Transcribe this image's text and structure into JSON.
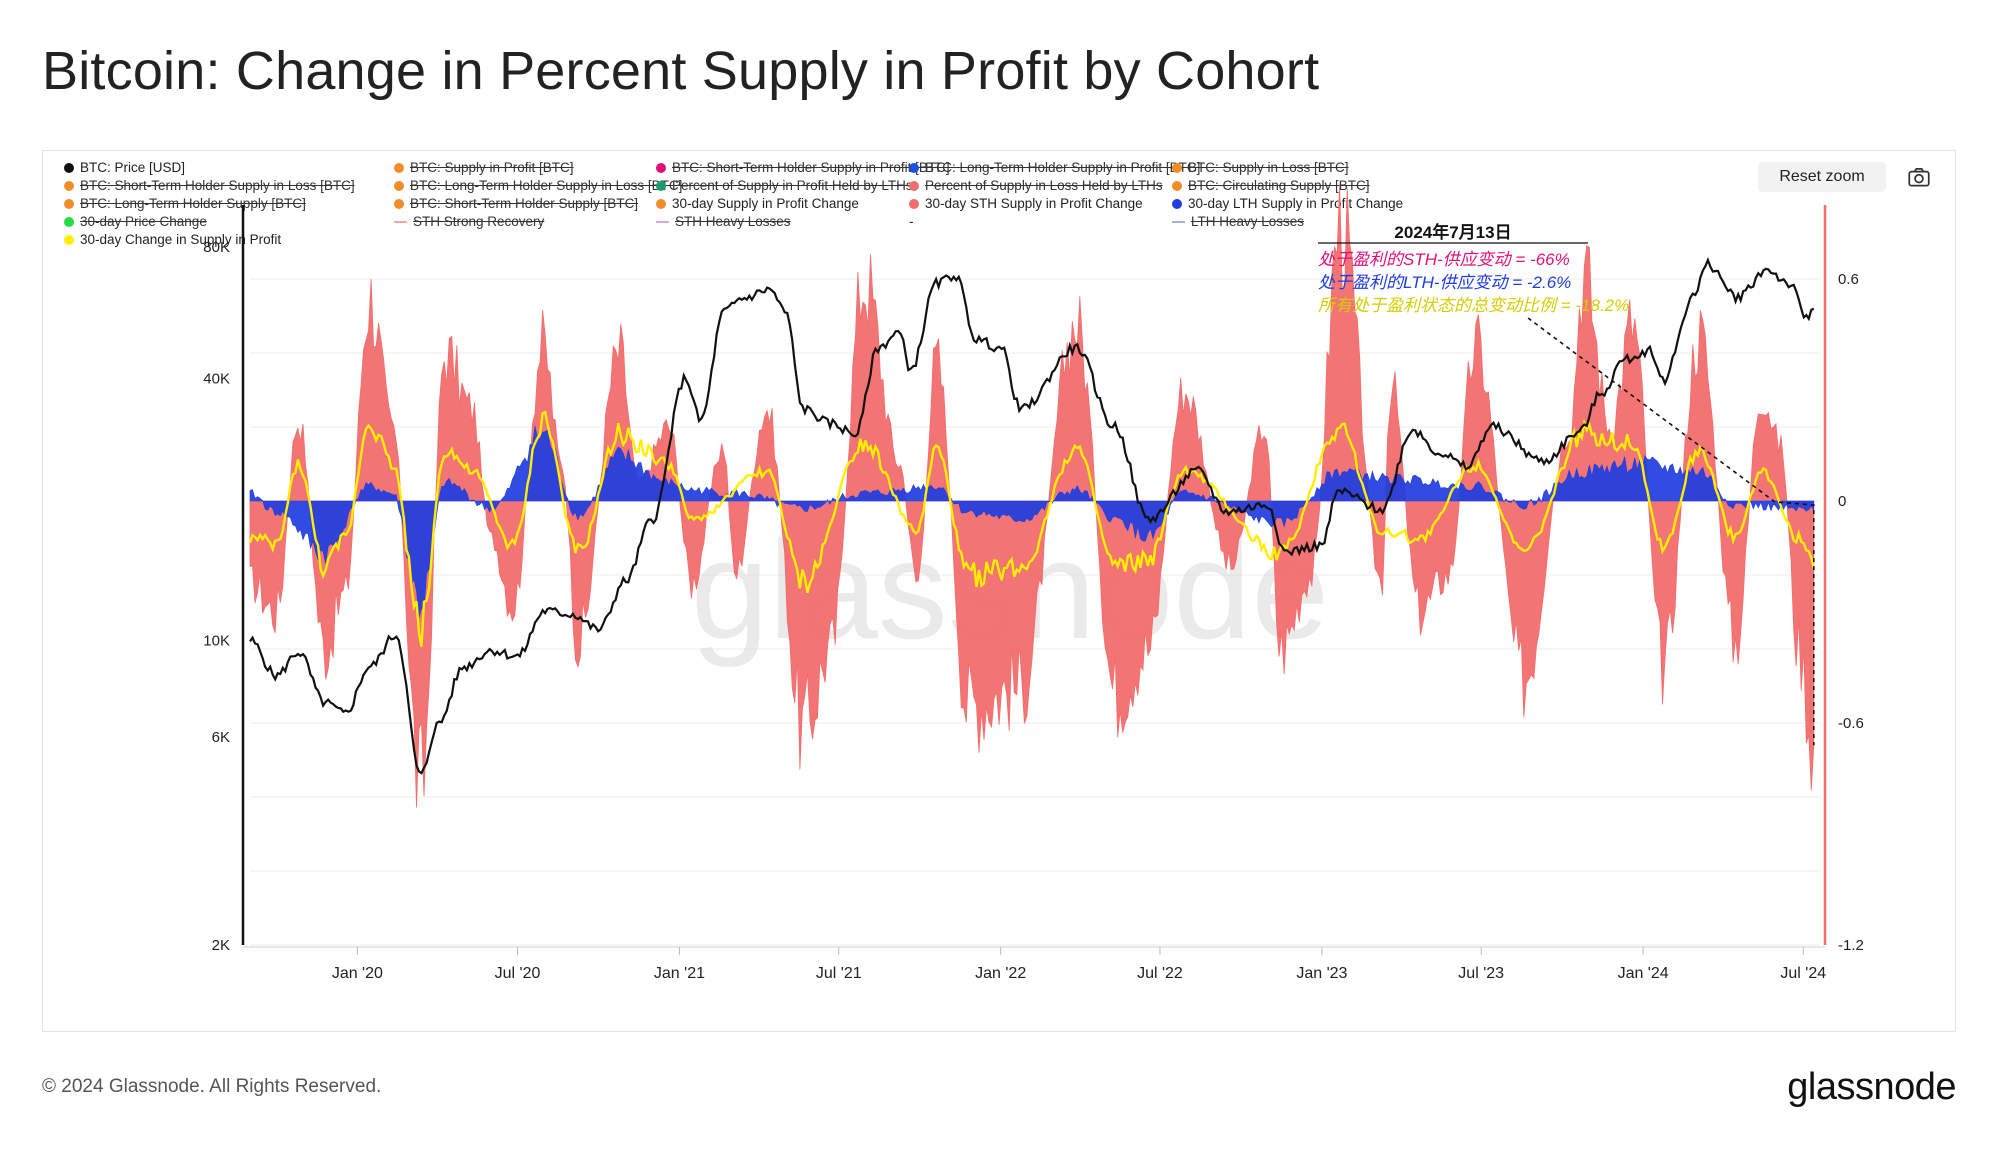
{
  "page": {
    "title": "Bitcoin: Change in Percent Supply in Profit by Cohort",
    "footer": "© 2024 Glassnode. All Rights Reserved.",
    "brand": "glassnode",
    "watermark": "glassnode",
    "reset_zoom_label": "Reset zoom",
    "camera_icon": "camera-icon"
  },
  "legend": [
    {
      "label": "BTC: Price [USD]",
      "color": "#111111",
      "off": false,
      "shape": "dot"
    },
    {
      "label": "BTC: Supply in Profit [BTC]",
      "color": "#f28c28",
      "off": true,
      "shape": "dot"
    },
    {
      "label": "BTC: Short-Term Holder Supply in Profit [BTC]",
      "color": "#e0107a",
      "off": true,
      "shape": "dot"
    },
    {
      "label": "BTC: Long-Term Holder Supply in Profit [BTC]",
      "color": "#1f4fe0",
      "off": true,
      "shape": "dot"
    },
    {
      "label": "BTC: Supply in Loss [BTC]",
      "color": "#f28c28",
      "off": true,
      "shape": "dot"
    },
    {
      "label": "BTC: Short-Term Holder Supply in Loss [BTC]",
      "color": "#f28c28",
      "off": true,
      "shape": "dot"
    },
    {
      "label": "BTC: Long-Term Holder Supply in Loss [BTC]",
      "color": "#f28c28",
      "off": true,
      "shape": "dot"
    },
    {
      "label": "Percent of Supply in Profit Held by LTHs",
      "color": "#1a9e6e",
      "off": true,
      "shape": "dot"
    },
    {
      "label": "Percent of Supply in Loss Held by LTHs",
      "color": "#f26d6d",
      "off": true,
      "shape": "dot"
    },
    {
      "label": "BTC: Circulating Supply [BTC]",
      "color": "#f28c28",
      "off": true,
      "shape": "dot"
    },
    {
      "label": "BTC: Long-Term Holder Supply [BTC]",
      "color": "#f28c28",
      "off": true,
      "shape": "dot"
    },
    {
      "label": "BTC: Short-Term Holder Supply [BTC]",
      "color": "#f28c28",
      "off": true,
      "shape": "dot"
    },
    {
      "label": "30-day Supply in Profit Change",
      "color": "#f28c28",
      "off": false,
      "shape": "dot"
    },
    {
      "label": "30-day STH Supply in Profit Change",
      "color": "#f26d6d",
      "off": false,
      "shape": "dot"
    },
    {
      "label": "30-day LTH Supply in Profit Change",
      "color": "#1f3de0",
      "off": false,
      "shape": "dot"
    },
    {
      "label": "30-day Price Change",
      "color": "#22dd44",
      "off": true,
      "shape": "dot"
    },
    {
      "label": "STH Strong Recovery",
      "color": "#f4a6a6",
      "off": true,
      "shape": "dash"
    },
    {
      "label": "STH Heavy Losses",
      "color": "#d9a6e6",
      "off": true,
      "shape": "dash"
    },
    {
      "label": "-",
      "color": "#ffffff",
      "off": false,
      "shape": "none"
    },
    {
      "label": "LTH Heavy Losses",
      "color": "#9fb3e6",
      "off": true,
      "shape": "dash"
    },
    {
      "label": "30-day Change in Supply in Profit",
      "color": "#ffee00",
      "off": false,
      "shape": "dot"
    }
  ],
  "annotation": {
    "date": "2024年7月13日",
    "line1": "处于盈利的STH-供应变动 = -66%",
    "line2": "处于盈利的LTH-供应变动 = -2.6%",
    "line3": "所有处于盈利状态的总变动比例 = -18.2%",
    "color1": "#e0107a",
    "color2": "#1f3de0",
    "color3": "#d6cc00"
  },
  "chart_data": {
    "type": "area",
    "x_axis": {
      "type": "date",
      "range": [
        "2019-09-01",
        "2024-07-20"
      ],
      "ticks": [
        "2020-01-01",
        "2020-07-01",
        "2021-01-01",
        "2021-07-01",
        "2022-01-01",
        "2022-07-01",
        "2023-01-01",
        "2023-07-01",
        "2024-01-01",
        "2024-07-01"
      ],
      "tick_labels": [
        "Jan '20",
        "Jul '20",
        "Jan '21",
        "Jul '21",
        "Jan '22",
        "Jul '22",
        "Jan '23",
        "Jul '23",
        "Jan '24",
        "Jul '24"
      ]
    },
    "y_left": {
      "scale": "log",
      "range": [
        2000,
        100000
      ],
      "ticks": [
        2000,
        6000,
        10000,
        40000,
        80000
      ],
      "tick_labels": [
        "2K",
        "6K",
        "10K",
        "40K",
        "80K"
      ]
    },
    "y_right": {
      "scale": "linear",
      "range": [
        -1.2,
        0.8
      ],
      "ticks": [
        -1.2,
        -0.6,
        0,
        0.6
      ],
      "tick_labels": [
        "-1.2",
        "-0.6",
        "0",
        "0.6"
      ]
    },
    "series": [
      {
        "name": "BTC: Price [USD]",
        "axis": "left",
        "style": "line",
        "color": "#111111",
        "points": [
          [
            "2019-09-01",
            10000
          ],
          [
            "2019-10-01",
            8300
          ],
          [
            "2019-10-26",
            9400
          ],
          [
            "2019-11-25",
            7200
          ],
          [
            "2019-12-18",
            6800
          ],
          [
            "2020-01-15",
            8700
          ],
          [
            "2020-02-14",
            10300
          ],
          [
            "2020-03-13",
            4900
          ],
          [
            "2020-04-01",
            6400
          ],
          [
            "2020-05-01",
            8700
          ],
          [
            "2020-06-01",
            9500
          ],
          [
            "2020-07-01",
            9200
          ],
          [
            "2020-08-01",
            11700
          ],
          [
            "2020-09-01",
            11500
          ],
          [
            "2020-10-01",
            10600
          ],
          [
            "2020-11-01",
            13700
          ],
          [
            "2020-12-01",
            19000
          ],
          [
            "2021-01-08",
            40000
          ],
          [
            "2021-01-25",
            32000
          ],
          [
            "2021-02-21",
            57000
          ],
          [
            "2021-03-13",
            61000
          ],
          [
            "2021-04-14",
            64000
          ],
          [
            "2021-05-01",
            57000
          ],
          [
            "2021-05-22",
            34000
          ],
          [
            "2021-06-22",
            31500
          ],
          [
            "2021-07-20",
            29800
          ],
          [
            "2021-08-15",
            47000
          ],
          [
            "2021-09-07",
            51000
          ],
          [
            "2021-09-21",
            42000
          ],
          [
            "2021-10-20",
            66000
          ],
          [
            "2021-11-10",
            69000
          ],
          [
            "2021-12-05",
            49000
          ],
          [
            "2022-01-01",
            47000
          ],
          [
            "2022-01-24",
            34000
          ],
          [
            "2022-03-28",
            47000
          ],
          [
            "2022-05-10",
            31000
          ],
          [
            "2022-06-18",
            19000
          ],
          [
            "2022-08-13",
            24500
          ],
          [
            "2022-09-15",
            19800
          ],
          [
            "2022-11-01",
            20500
          ],
          [
            "2022-11-20",
            16000
          ],
          [
            "2022-12-31",
            16500
          ],
          [
            "2023-01-20",
            22000
          ],
          [
            "2023-03-10",
            20000
          ],
          [
            "2023-04-14",
            30500
          ],
          [
            "2023-05-15",
            27000
          ],
          [
            "2023-06-15",
            25000
          ],
          [
            "2023-07-13",
            31000
          ],
          [
            "2023-09-10",
            25800
          ],
          [
            "2023-10-20",
            30000
          ],
          [
            "2023-11-15",
            37000
          ],
          [
            "2023-12-10",
            44000
          ],
          [
            "2024-01-10",
            46500
          ],
          [
            "2024-01-23",
            39500
          ],
          [
            "2024-02-28",
            62000
          ],
          [
            "2024-03-14",
            73000
          ],
          [
            "2024-04-17",
            61500
          ],
          [
            "2024-05-21",
            71000
          ],
          [
            "2024-06-15",
            66000
          ],
          [
            "2024-07-05",
            55000
          ],
          [
            "2024-07-13",
            58000
          ]
        ]
      },
      {
        "name": "30-day STH Supply in Profit Change",
        "axis": "right",
        "style": "area",
        "color": "#f26d6d",
        "points": [
          [
            "2019-09-01",
            -0.22
          ],
          [
            "2019-10-01",
            -0.3
          ],
          [
            "2019-10-26",
            0.22
          ],
          [
            "2019-11-25",
            -0.4
          ],
          [
            "2019-12-18",
            -0.25
          ],
          [
            "2020-01-15",
            0.55
          ],
          [
            "2020-02-10",
            0.2
          ],
          [
            "2020-03-13",
            -0.78
          ],
          [
            "2020-04-10",
            0.4
          ],
          [
            "2020-05-10",
            0.25
          ],
          [
            "2020-06-01",
            -0.1
          ],
          [
            "2020-06-26",
            -0.28
          ],
          [
            "2020-07-30",
            0.42
          ],
          [
            "2020-08-20",
            0.1
          ],
          [
            "2020-09-08",
            -0.38
          ],
          [
            "2020-10-25",
            0.4
          ],
          [
            "2020-11-15",
            0.05
          ],
          [
            "2020-12-20",
            0.2
          ],
          [
            "2021-01-15",
            -0.22
          ],
          [
            "2021-02-20",
            0.15
          ],
          [
            "2021-03-05",
            -0.2
          ],
          [
            "2021-04-10",
            0.25
          ],
          [
            "2021-05-22",
            -0.62
          ],
          [
            "2021-06-22",
            -0.4
          ],
          [
            "2021-07-30",
            0.6
          ],
          [
            "2021-09-08",
            0.1
          ],
          [
            "2021-09-28",
            -0.22
          ],
          [
            "2021-10-20",
            0.38
          ],
          [
            "2021-11-25",
            -0.55
          ],
          [
            "2022-01-24",
            -0.5
          ],
          [
            "2022-03-28",
            0.48
          ],
          [
            "2022-05-12",
            -0.52
          ],
          [
            "2022-06-18",
            -0.4
          ],
          [
            "2022-07-28",
            0.3
          ],
          [
            "2022-09-20",
            -0.18
          ],
          [
            "2022-10-28",
            0.2
          ],
          [
            "2022-11-15",
            -0.4
          ],
          [
            "2022-12-20",
            -0.2
          ],
          [
            "2023-01-22",
            0.75
          ],
          [
            "2023-03-10",
            -0.22
          ],
          [
            "2023-03-20",
            0.32
          ],
          [
            "2023-04-22",
            -0.3
          ],
          [
            "2023-05-25",
            -0.2
          ],
          [
            "2023-06-25",
            0.42
          ],
          [
            "2023-08-18",
            -0.48
          ],
          [
            "2023-10-10",
            0.2
          ],
          [
            "2023-10-25",
            0.62
          ],
          [
            "2023-11-25",
            0.2
          ],
          [
            "2023-12-20",
            0.48
          ],
          [
            "2024-01-24",
            -0.45
          ],
          [
            "2024-03-05",
            0.45
          ],
          [
            "2024-04-15",
            -0.38
          ],
          [
            "2024-05-15",
            0.3
          ],
          [
            "2024-06-05",
            0.15
          ],
          [
            "2024-06-26",
            -0.4
          ],
          [
            "2024-07-13",
            -0.66
          ]
        ]
      },
      {
        "name": "30-day LTH Supply in Profit Change",
        "axis": "right",
        "style": "area",
        "color": "#1f3de0",
        "points": [
          [
            "2019-09-01",
            0.02
          ],
          [
            "2019-10-01",
            -0.03
          ],
          [
            "2019-11-25",
            -0.14
          ],
          [
            "2020-01-15",
            0.04
          ],
          [
            "2020-02-10",
            0.02
          ],
          [
            "2020-03-13",
            -0.28
          ],
          [
            "2020-04-10",
            0.05
          ],
          [
            "2020-06-01",
            -0.02
          ],
          [
            "2020-07-30",
            0.18
          ],
          [
            "2020-09-08",
            -0.04
          ],
          [
            "2020-10-25",
            0.12
          ],
          [
            "2020-12-20",
            0.05
          ],
          [
            "2021-01-15",
            0.03
          ],
          [
            "2021-03-05",
            0.02
          ],
          [
            "2021-05-22",
            -0.02
          ],
          [
            "2021-07-30",
            0.02
          ],
          [
            "2021-10-20",
            0.04
          ],
          [
            "2021-11-25",
            -0.03
          ],
          [
            "2022-01-24",
            -0.05
          ],
          [
            "2022-03-28",
            0.03
          ],
          [
            "2022-05-12",
            -0.05
          ],
          [
            "2022-06-18",
            -0.1
          ],
          [
            "2022-07-28",
            0.02
          ],
          [
            "2022-11-15",
            -0.06
          ],
          [
            "2023-01-22",
            0.08
          ],
          [
            "2023-03-20",
            0.06
          ],
          [
            "2023-06-25",
            0.04
          ],
          [
            "2023-08-18",
            -0.01
          ],
          [
            "2023-10-25",
            0.08
          ],
          [
            "2023-12-20",
            0.1
          ],
          [
            "2024-03-05",
            0.08
          ],
          [
            "2024-04-15",
            -0.01
          ],
          [
            "2024-07-13",
            -0.026
          ]
        ]
      },
      {
        "name": "30-day Change in Supply in Profit",
        "axis": "right",
        "style": "line",
        "color": "#ffee00",
        "points": [
          [
            "2019-09-01",
            -0.1
          ],
          [
            "2019-10-01",
            -0.12
          ],
          [
            "2019-10-26",
            0.1
          ],
          [
            "2019-11-25",
            -0.18
          ],
          [
            "2019-12-18",
            -0.1
          ],
          [
            "2020-01-15",
            0.22
          ],
          [
            "2020-02-10",
            0.1
          ],
          [
            "2020-03-13",
            -0.34
          ],
          [
            "2020-04-10",
            0.14
          ],
          [
            "2020-05-10",
            0.08
          ],
          [
            "2020-06-26",
            -0.12
          ],
          [
            "2020-07-30",
            0.22
          ],
          [
            "2020-09-08",
            -0.14
          ],
          [
            "2020-10-25",
            0.18
          ],
          [
            "2020-12-20",
            0.1
          ],
          [
            "2021-01-15",
            -0.05
          ],
          [
            "2021-04-10",
            0.08
          ],
          [
            "2021-05-22",
            -0.22
          ],
          [
            "2021-07-30",
            0.16
          ],
          [
            "2021-09-28",
            -0.08
          ],
          [
            "2021-10-20",
            0.14
          ],
          [
            "2021-11-25",
            -0.2
          ],
          [
            "2022-01-24",
            -0.18
          ],
          [
            "2022-03-28",
            0.14
          ],
          [
            "2022-05-12",
            -0.18
          ],
          [
            "2022-06-18",
            -0.16
          ],
          [
            "2022-07-28",
            0.08
          ],
          [
            "2022-11-15",
            -0.14
          ],
          [
            "2023-01-22",
            0.2
          ],
          [
            "2023-03-10",
            -0.08
          ],
          [
            "2023-04-22",
            -0.1
          ],
          [
            "2023-06-25",
            0.1
          ],
          [
            "2023-08-18",
            -0.14
          ],
          [
            "2023-10-25",
            0.18
          ],
          [
            "2023-12-20",
            0.16
          ],
          [
            "2024-01-24",
            -0.12
          ],
          [
            "2024-03-05",
            0.14
          ],
          [
            "2024-04-15",
            -0.1
          ],
          [
            "2024-05-15",
            0.08
          ],
          [
            "2024-06-26",
            -0.1
          ],
          [
            "2024-07-13",
            -0.182
          ]
        ]
      }
    ]
  }
}
